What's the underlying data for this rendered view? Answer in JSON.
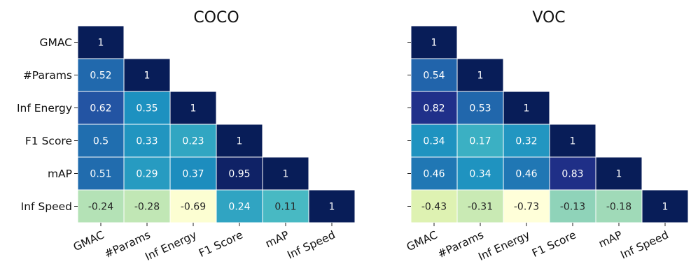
{
  "chart_data": [
    {
      "type": "heatmap",
      "title": "COCO",
      "labels": [
        "GMAC",
        "#Params",
        "Inf Energy",
        "F1 Score",
        "mAP",
        "Inf Speed"
      ],
      "xlabel": "",
      "ylabel": "",
      "mask": "lower-triangle",
      "colormap": "YlGnBu",
      "value_range": [
        -0.73,
        1
      ],
      "grid": false,
      "rows": [
        [
          1
        ],
        [
          0.52,
          1
        ],
        [
          0.62,
          0.35,
          1
        ],
        [
          0.5,
          0.33,
          0.23,
          1
        ],
        [
          0.51,
          0.29,
          0.37,
          0.95,
          1
        ],
        [
          -0.24,
          -0.28,
          -0.69,
          0.24,
          0.11,
          1
        ]
      ]
    },
    {
      "type": "heatmap",
      "title": "VOC",
      "labels": [
        "GMAC",
        "#Params",
        "Inf Energy",
        "F1 Score",
        "mAP",
        "Inf Speed"
      ],
      "xlabel": "",
      "ylabel": "",
      "mask": "lower-triangle",
      "colormap": "YlGnBu",
      "value_range": [
        -0.73,
        1
      ],
      "grid": false,
      "rows": [
        [
          1
        ],
        [
          0.54,
          1
        ],
        [
          0.82,
          0.53,
          1
        ],
        [
          0.34,
          0.17,
          0.32,
          1
        ],
        [
          0.46,
          0.34,
          0.46,
          0.83,
          1
        ],
        [
          -0.43,
          -0.31,
          -0.73,
          -0.13,
          -0.18,
          1
        ]
      ]
    }
  ]
}
